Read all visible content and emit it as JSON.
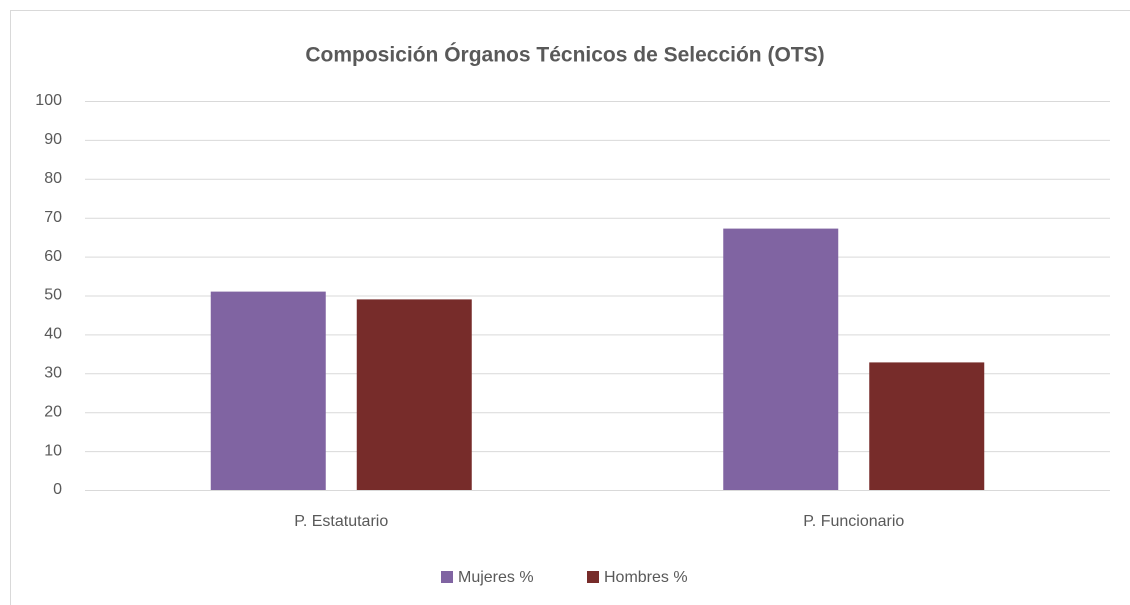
{
  "chart_data": {
    "type": "bar",
    "title": "Composición Órganos Técnicos de Selección (OTS)",
    "categories": [
      "P. Estatutario",
      "P. Funcionario"
    ],
    "series": [
      {
        "name": "Mujeres %",
        "color": "#8064a2",
        "values": [
          51,
          67.2
        ]
      },
      {
        "name": "Hombres %",
        "color": "#772c2a",
        "values": [
          49,
          32.8
        ]
      }
    ],
    "ylim": [
      0,
      100
    ],
    "yticks": [
      0,
      10,
      20,
      30,
      40,
      50,
      60,
      70,
      80,
      90,
      100
    ],
    "grid": true,
    "legend": "bottom"
  }
}
